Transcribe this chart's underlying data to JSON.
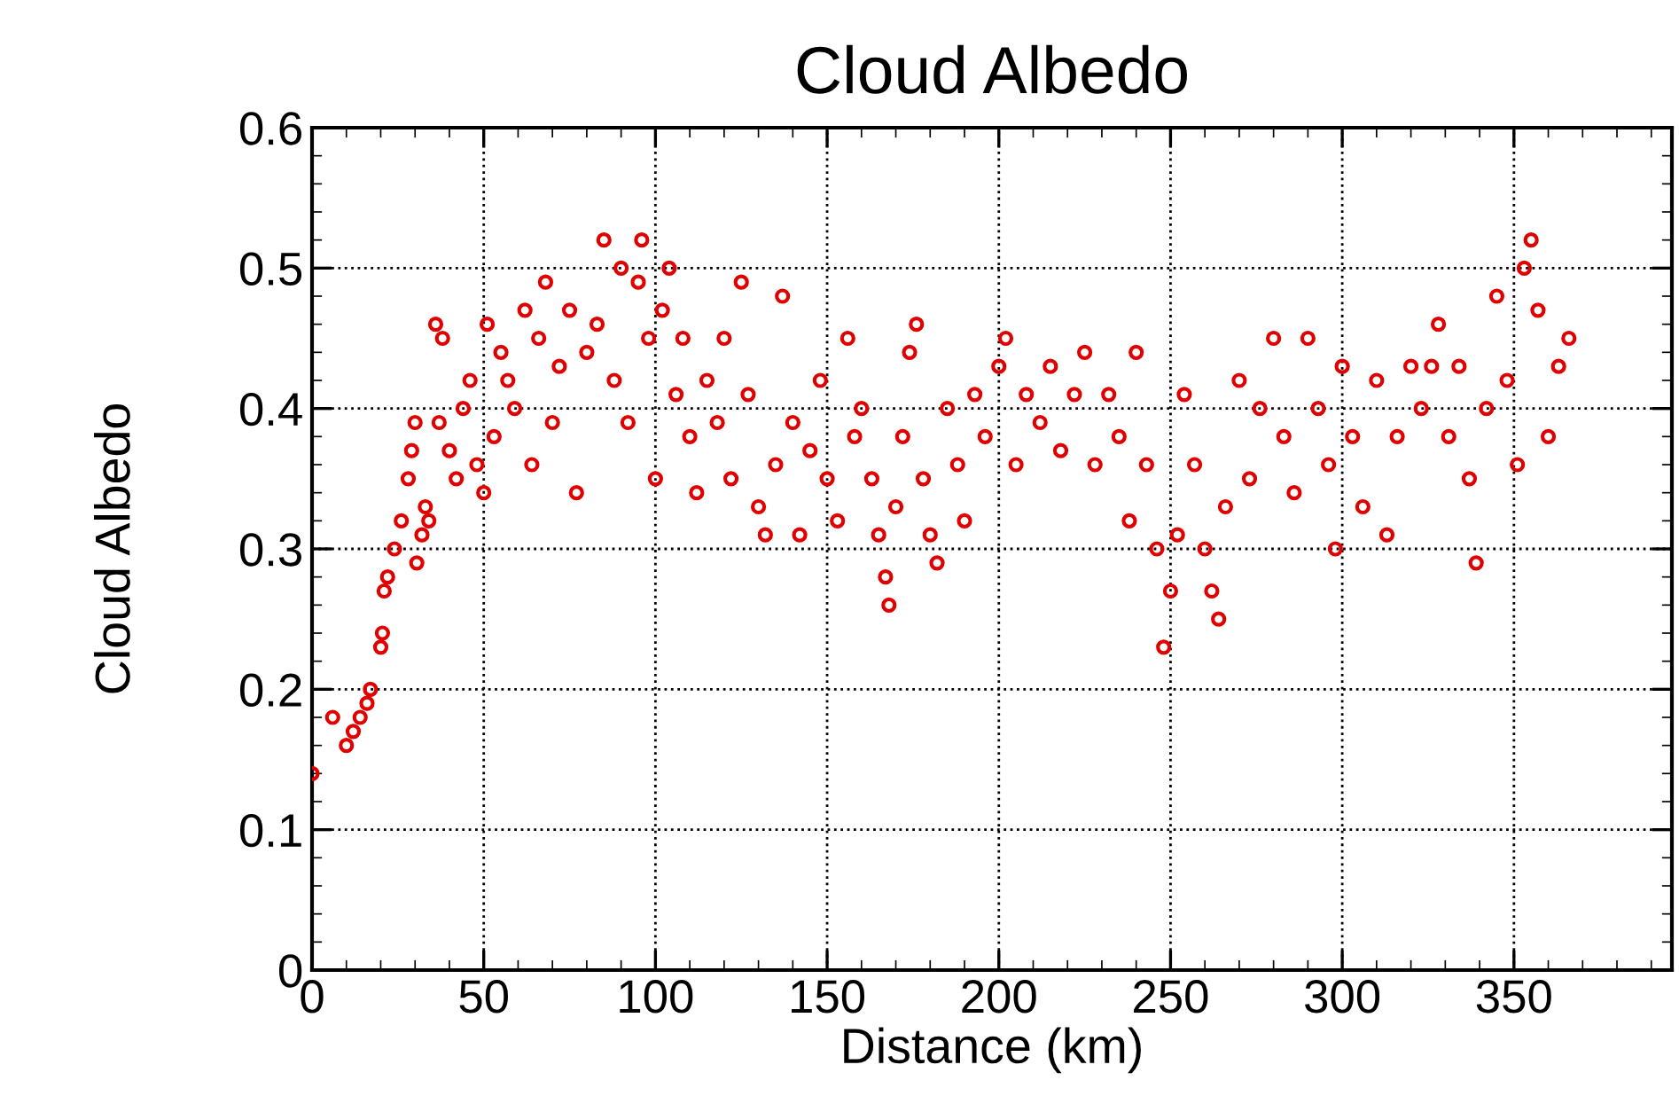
{
  "chart_data": {
    "type": "scatter",
    "title": "Cloud Albedo",
    "xlabel": "Distance (km)",
    "ylabel": "Cloud Albedo",
    "marker": "circle",
    "grid": true,
    "legend": false,
    "xlim": [
      0,
      396
    ],
    "xticks": [
      0,
      50,
      100,
      150,
      200,
      250,
      300,
      350
    ],
    "ylim": [
      0,
      0.6
    ],
    "yticks": [
      0,
      0.1,
      0.2,
      0.3,
      0.4,
      0.5,
      0.6
    ],
    "series": [
      {
        "color": "#e00000",
        "x": [
          0,
          6,
          10,
          12,
          14,
          16,
          17,
          20,
          20.5,
          21,
          22,
          24,
          26,
          28,
          29,
          30,
          30.5,
          32,
          33,
          34,
          36,
          37,
          38,
          40,
          42,
          44,
          46,
          48,
          50,
          51,
          53,
          55,
          57,
          59,
          62,
          64,
          66,
          68,
          70,
          72,
          75,
          77,
          80,
          83,
          85,
          88,
          90,
          92,
          95,
          96,
          98,
          100,
          102,
          104,
          106,
          108,
          110,
          112,
          115,
          118,
          120,
          122,
          125,
          127,
          130,
          132,
          135,
          137,
          140,
          142,
          145,
          148,
          150,
          153,
          156,
          158,
          160,
          163,
          165,
          167,
          168,
          170,
          172,
          174,
          176,
          178,
          180,
          182,
          185,
          188,
          190,
          193,
          196,
          200,
          202,
          205,
          208,
          212,
          215,
          218,
          222,
          225,
          228,
          232,
          235,
          238,
          240,
          243,
          246,
          248,
          250,
          252,
          254,
          257,
          260,
          262,
          264,
          266,
          270,
          273,
          276,
          280,
          283,
          286,
          290,
          293,
          296,
          298,
          300,
          303,
          306,
          310,
          313,
          316,
          320,
          323,
          326,
          328,
          331,
          334,
          337,
          339,
          342,
          345,
          348,
          351,
          353,
          355,
          357,
          360,
          363,
          366
        ],
        "values": [
          0.14,
          0.18,
          0.16,
          0.17,
          0.18,
          0.19,
          0.2,
          0.23,
          0.24,
          0.27,
          0.28,
          0.3,
          0.32,
          0.35,
          0.37,
          0.39,
          0.29,
          0.31,
          0.33,
          0.32,
          0.46,
          0.39,
          0.45,
          0.37,
          0.35,
          0.4,
          0.42,
          0.36,
          0.34,
          0.46,
          0.38,
          0.44,
          0.42,
          0.4,
          0.47,
          0.36,
          0.45,
          0.49,
          0.39,
          0.43,
          0.47,
          0.34,
          0.44,
          0.46,
          0.52,
          0.42,
          0.5,
          0.39,
          0.49,
          0.52,
          0.45,
          0.35,
          0.47,
          0.5,
          0.41,
          0.45,
          0.38,
          0.34,
          0.42,
          0.39,
          0.45,
          0.35,
          0.49,
          0.41,
          0.33,
          0.31,
          0.36,
          0.48,
          0.39,
          0.31,
          0.37,
          0.42,
          0.35,
          0.32,
          0.45,
          0.38,
          0.4,
          0.35,
          0.31,
          0.28,
          0.26,
          0.33,
          0.38,
          0.44,
          0.46,
          0.35,
          0.31,
          0.29,
          0.4,
          0.36,
          0.32,
          0.41,
          0.38,
          0.43,
          0.45,
          0.36,
          0.41,
          0.39,
          0.43,
          0.37,
          0.41,
          0.44,
          0.36,
          0.41,
          0.38,
          0.32,
          0.44,
          0.36,
          0.3,
          0.23,
          0.27,
          0.31,
          0.41,
          0.36,
          0.3,
          0.27,
          0.25,
          0.33,
          0.42,
          0.35,
          0.4,
          0.45,
          0.38,
          0.34,
          0.45,
          0.4,
          0.36,
          0.3,
          0.43,
          0.38,
          0.33,
          0.42,
          0.31,
          0.38,
          0.43,
          0.4,
          0.43,
          0.46,
          0.38,
          0.43,
          0.35,
          0.29,
          0.4,
          0.48,
          0.42,
          0.36,
          0.5,
          0.52,
          0.47,
          0.38,
          0.43,
          0.45
        ]
      }
    ]
  }
}
